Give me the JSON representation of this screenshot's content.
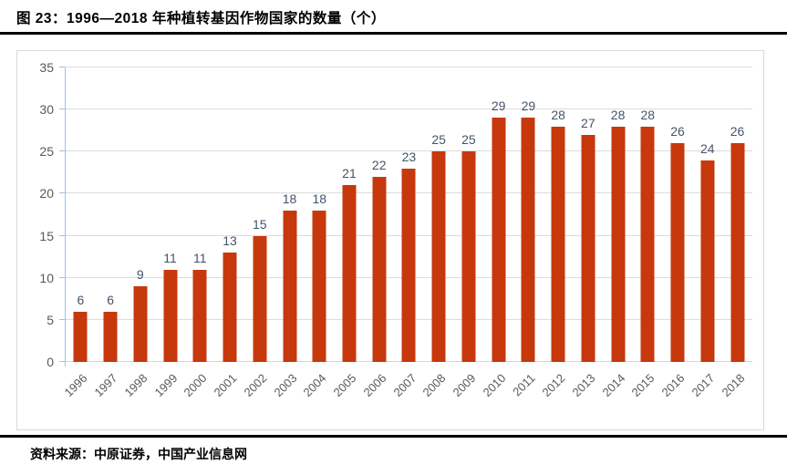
{
  "header": {
    "title": "图 23：1996—2018 年种植转基因作物国家的数量（个）"
  },
  "footer": {
    "source": "资料来源：中原证券，中国产业信息网"
  },
  "chart_data": {
    "type": "bar",
    "title": "1996—2018 年种植转基因作物国家的数量（个）",
    "categories": [
      "1996",
      "1997",
      "1998",
      "1999",
      "2000",
      "2001",
      "2002",
      "2003",
      "2004",
      "2005",
      "2006",
      "2007",
      "2008",
      "2009",
      "2010",
      "2011",
      "2012",
      "2013",
      "2014",
      "2015",
      "2016",
      "2017",
      "2018"
    ],
    "values": [
      6,
      6,
      9,
      11,
      11,
      13,
      15,
      18,
      18,
      21,
      22,
      23,
      25,
      25,
      29,
      29,
      28,
      27,
      28,
      28,
      26,
      24,
      26
    ],
    "xlabel": "",
    "ylabel": "",
    "ylim": [
      0,
      35
    ],
    "y_ticks": [
      0,
      5,
      10,
      15,
      20,
      25,
      30,
      35
    ],
    "grid": true,
    "legend_position": "none",
    "data_labels": true,
    "colors": {
      "bar": "#c7380d",
      "gridline": "#dcdcdc",
      "baseline": "#d6d6d6",
      "axis_line": "#9dc3e6",
      "tick_label": "#595959",
      "data_label": "#44546a"
    }
  }
}
